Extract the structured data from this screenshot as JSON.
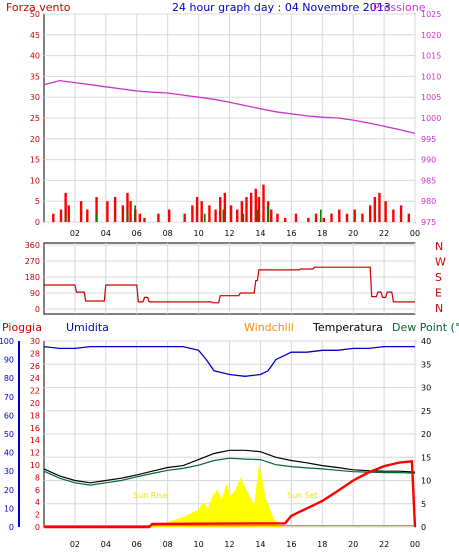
{
  "header": {
    "wind_label": "Forza vento",
    "title": "24 hour graph day : 04 Novembre 2013",
    "pressure_label": "Pressione"
  },
  "mid_labels": {
    "rain": "Pioggia",
    "humidity": "Umidita",
    "windchill": "Windchill",
    "temperature": "Temperatura",
    "dewpoint": "Dew Point (°C"
  },
  "compass": [
    "N",
    "W",
    "S",
    "E",
    "N"
  ],
  "annotations": {
    "sunrise": "Sun Rise",
    "sunset": "Sun Set"
  },
  "colors": {
    "wind": "#ff0000",
    "gust": "#008000",
    "pressure": "#cc33cc",
    "direction": "#cc0000",
    "humidity": "#0000cc",
    "temperature": "#000000",
    "dewpoint": "#006633",
    "windchill": "#ff8c00",
    "rain": "#ff0000",
    "solar": "#ffff00",
    "axis_left": "#cc0000",
    "axis_pressure": "#cc33cc",
    "axis_humidity": "#0000cc"
  },
  "chart_data": [
    {
      "type": "line",
      "id": "wind-pressure",
      "title": "24 hour graph day : 04 Novembre 2013",
      "x_ticks": [
        "02",
        "04",
        "06",
        "08",
        "10",
        "12",
        "14",
        "16",
        "18",
        "20",
        "22",
        "00"
      ],
      "xlim": [
        0,
        24
      ],
      "left_axis": {
        "label": "Forza vento",
        "ylim": [
          0,
          50
        ],
        "ticks": [
          0,
          5,
          10,
          15,
          20,
          25,
          30,
          35,
          40,
          45,
          50
        ]
      },
      "right_axis": {
        "label": "Pressione",
        "ylim": [
          975,
          1025
        ],
        "ticks": [
          975,
          980,
          985,
          990,
          995,
          1000,
          1005,
          1010,
          1015,
          1020,
          1025
        ]
      },
      "grid": true,
      "series": [
        {
          "name": "Pressione",
          "axis": "right",
          "x": [
            0,
            1,
            2,
            3,
            4,
            5,
            6,
            7,
            8,
            9,
            10,
            11,
            12,
            13,
            14,
            15,
            16,
            17,
            18,
            19,
            20,
            21,
            22,
            23,
            24
          ],
          "values": [
            1008,
            1009,
            1008.5,
            1008,
            1007.5,
            1007,
            1006.5,
            1006.2,
            1006,
            1005.5,
            1005,
            1004.5,
            1003.8,
            1003,
            1002.2,
            1001.5,
            1001,
            1000.5,
            1000.2,
            1000,
            999.5,
            998.8,
            998,
            997.2,
            996.3
          ]
        },
        {
          "name": "Forza vento",
          "axis": "left",
          "style": "bars",
          "x": [
            0.6,
            1.1,
            1.4,
            1.6,
            2.4,
            2.8,
            3.4,
            4.1,
            4.6,
            5.1,
            5.4,
            5.6,
            5.9,
            6.2,
            6.5,
            7.4,
            8.1,
            9.1,
            9.6,
            9.9,
            10.2,
            10.7,
            11.1,
            11.4,
            11.7,
            12.1,
            12.5,
            12.8,
            13.1,
            13.4,
            13.7,
            13.9,
            14.2,
            14.5,
            14.7,
            15.1,
            15.6,
            16.3,
            17.1,
            17.6,
            18.1,
            18.6,
            19.1,
            19.6,
            20.1,
            20.6,
            21.1,
            21.4,
            21.7,
            22.1,
            22.6,
            23.1,
            23.6
          ],
          "values": [
            2,
            3,
            7,
            4,
            5,
            3,
            6,
            5,
            6,
            4,
            7,
            5,
            3,
            2,
            1,
            2,
            3,
            2,
            4,
            6,
            5,
            4,
            3,
            6,
            7,
            4,
            3,
            5,
            6,
            7,
            8,
            6,
            9,
            5,
            3,
            2,
            1,
            2,
            1,
            2,
            1,
            2,
            3,
            2,
            3,
            2,
            4,
            6,
            7,
            5,
            3,
            4,
            2
          ]
        },
        {
          "name": "Raffica",
          "axis": "left",
          "style": "bars",
          "x": [
            1.4,
            3.4,
            5.4,
            5.9,
            10.4,
            11.6,
            12.9,
            13.8,
            14.5,
            17.9
          ],
          "values": [
            2,
            2,
            3,
            4,
            2,
            3,
            2,
            3,
            4,
            3
          ]
        }
      ]
    },
    {
      "type": "line",
      "id": "wind-direction",
      "x_ticks": [
        "02",
        "04",
        "06",
        "08",
        "10",
        "12",
        "14",
        "16",
        "18",
        "20",
        "22",
        "00"
      ],
      "xlim": [
        0,
        24
      ],
      "ylim": [
        0,
        360
      ],
      "y_ticks": [
        0,
        90,
        180,
        270,
        360
      ],
      "right_labels": [
        "N",
        "W",
        "S",
        "E",
        "N"
      ],
      "grid": true,
      "series": [
        {
          "name": "Direzione",
          "x": [
            0,
            2.0,
            2.1,
            2.6,
            2.7,
            3.9,
            4.0,
            6.0,
            6.1,
            6.4,
            6.5,
            6.7,
            6.8,
            10.8,
            10.9,
            11.3,
            11.4,
            12.6,
            12.7,
            13.6,
            13.7,
            13.8,
            13.9,
            16.5,
            16.6,
            17.4,
            17.5,
            21.1,
            21.2,
            21.5,
            21.6,
            21.8,
            21.9,
            22.1,
            22.2,
            22.5,
            22.6,
            24
          ],
          "values": [
            135,
            135,
            95,
            95,
            45,
            45,
            135,
            135,
            40,
            40,
            65,
            65,
            40,
            40,
            35,
            35,
            75,
            75,
            90,
            90,
            160,
            160,
            220,
            220,
            225,
            225,
            235,
            235,
            70,
            70,
            95,
            95,
            65,
            65,
            95,
            95,
            40,
            40
          ]
        }
      ]
    },
    {
      "type": "line",
      "id": "temp-humidity-rain",
      "x_ticks": [
        "02",
        "04",
        "06",
        "08",
        "10",
        "12",
        "14",
        "16",
        "18",
        "20",
        "22",
        "00"
      ],
      "xlim": [
        0,
        24
      ],
      "rain_axis": {
        "label": "Pioggia",
        "ylim": [
          0,
          30
        ],
        "ticks": [
          0,
          2,
          4,
          6,
          8,
          10,
          12,
          14,
          16,
          18,
          20,
          22,
          24,
          26,
          28,
          30
        ]
      },
      "humidity_axis": {
        "label": "Umidita",
        "ylim": [
          0,
          100
        ],
        "ticks": [
          0,
          10,
          20,
          30,
          40,
          50,
          60,
          70,
          80,
          90,
          100
        ]
      },
      "temp_axis": {
        "label": "Temperatura",
        "ylim": [
          0,
          40
        ],
        "ticks": [
          0,
          5,
          10,
          15,
          20,
          25,
          30,
          35,
          40
        ]
      },
      "grid": true,
      "series": [
        {
          "name": "Umidita",
          "axis": "humidity",
          "x": [
            0,
            1,
            2,
            3,
            4,
            5,
            6,
            7,
            8,
            9,
            10,
            10.5,
            11,
            12,
            13,
            14,
            14.5,
            15,
            16,
            17,
            18,
            19,
            20,
            21,
            22,
            23,
            24
          ],
          "values": [
            97,
            96,
            96,
            97,
            97,
            97,
            97,
            97,
            97,
            97,
            95,
            90,
            84,
            82,
            81,
            82,
            84,
            90,
            94,
            94,
            95,
            95,
            96,
            96,
            97,
            97,
            97
          ]
        },
        {
          "name": "Temperatura",
          "axis": "temp",
          "x": [
            0,
            1,
            2,
            3,
            4,
            5,
            6,
            7,
            8,
            9,
            10,
            11,
            12,
            13,
            14,
            15,
            16,
            17,
            18,
            19,
            20,
            21,
            22,
            23,
            24
          ],
          "values": [
            12.5,
            11,
            10,
            9.5,
            10,
            10.5,
            11.2,
            12,
            12.8,
            13.2,
            14.5,
            15.8,
            16.5,
            16.5,
            16.2,
            15,
            14.3,
            13.8,
            13.2,
            12.8,
            12.3,
            12.1,
            12,
            12,
            11.8
          ]
        },
        {
          "name": "Dew Point",
          "axis": "temp",
          "x": [
            0,
            1,
            2,
            3,
            4,
            5,
            6,
            7,
            8,
            9,
            10,
            11,
            12,
            13,
            14,
            15,
            16,
            17,
            18,
            19,
            20,
            21,
            22,
            23,
            24
          ],
          "values": [
            12,
            10.5,
            9.5,
            9,
            9.5,
            10,
            10.8,
            11.5,
            12.2,
            12.6,
            13.3,
            14.3,
            14.8,
            14.6,
            14.5,
            13.4,
            13,
            12.7,
            12.5,
            12.2,
            11.9,
            11.8,
            11.7,
            11.7,
            11.6
          ]
        },
        {
          "name": "Windchill",
          "axis": "temp",
          "x": [
            0,
            24
          ],
          "values": [
            0.3,
            0.3
          ]
        },
        {
          "name": "Pioggia",
          "axis": "rain",
          "x": [
            0,
            6.8,
            7.0,
            15.6,
            16.0,
            17.0,
            18.0,
            19.0,
            20.0,
            21.0,
            22.0,
            23.0,
            23.8,
            24
          ],
          "values": [
            0,
            0,
            0.5,
            0.6,
            1.8,
            3,
            4.2,
            5.8,
            7.5,
            8.8,
            9.8,
            10.4,
            10.6,
            0
          ]
        },
        {
          "name": "Solar",
          "axis": "rain",
          "style": "area",
          "x": [
            6.9,
            7.5,
            8,
            8.5,
            9,
            9.5,
            10,
            10.3,
            10.6,
            10.9,
            11.2,
            11.5,
            11.8,
            12.1,
            12.4,
            12.7,
            13,
            13.3,
            13.6,
            13.9,
            14.1,
            14.3,
            14.6,
            14.9,
            15.2,
            15.5
          ],
          "values": [
            0,
            0.4,
            0.8,
            1.2,
            1.6,
            2.2,
            2.8,
            4,
            3,
            5,
            6,
            4.5,
            7,
            5,
            6,
            8,
            6.5,
            5,
            3.5,
            10,
            8,
            5,
            3,
            1.2,
            0.4,
            0
          ]
        }
      ],
      "annotations": [
        "Sun Rise",
        "Sun Set"
      ]
    }
  ]
}
